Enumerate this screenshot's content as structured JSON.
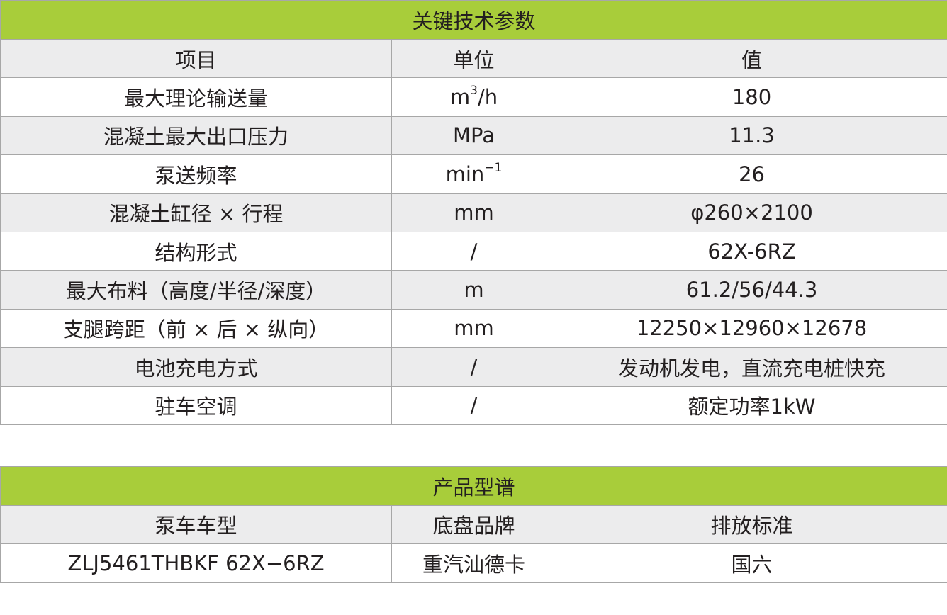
{
  "specs": {
    "title": "关键技术参数",
    "headers": [
      "项目",
      "单位",
      "值"
    ],
    "rows": [
      {
        "item": "最大理论输送量",
        "unit": "m",
        "unit_sup": "3",
        "unit_tail": "/h",
        "value": "180"
      },
      {
        "item": "混凝土最大出口压力",
        "unit": "MPa",
        "unit_sup": "",
        "unit_tail": "",
        "value": "11.3"
      },
      {
        "item": "泵送频率",
        "unit": "min",
        "unit_sup": "−1",
        "unit_tail": "",
        "value": "26"
      },
      {
        "item": "混凝土缸径 × 行程",
        "unit": "mm",
        "unit_sup": "",
        "unit_tail": "",
        "value": "φ260×2100"
      },
      {
        "item": "结构形式",
        "unit": "/",
        "unit_sup": "",
        "unit_tail": "",
        "value": "62X-6RZ"
      },
      {
        "item": "最大布料（高度/半径/深度）",
        "unit": "m",
        "unit_sup": "",
        "unit_tail": "",
        "value": "61.2/56/44.3"
      },
      {
        "item": "支腿跨距（前 × 后 × 纵向）",
        "unit": "mm",
        "unit_sup": "",
        "unit_tail": "",
        "value": "12250×12960×12678"
      },
      {
        "item": "电池充电方式",
        "unit": "/",
        "unit_sup": "",
        "unit_tail": "",
        "value": "发动机发电，直流充电桩快充"
      },
      {
        "item": "驻车空调",
        "unit": "/",
        "unit_sup": "",
        "unit_tail": "",
        "value": "额定功率1kW"
      }
    ]
  },
  "models": {
    "title": "产品型谱",
    "headers": [
      "泵车车型",
      "底盘品牌",
      "排放标准"
    ],
    "rows": [
      {
        "model": "ZLJ5461THBKF 62X−6RZ",
        "chassis": "重汽汕德卡",
        "emission": "国六"
      }
    ]
  },
  "colors": {
    "header_green": "#a8cd3a",
    "row_gray": "#ececed"
  }
}
